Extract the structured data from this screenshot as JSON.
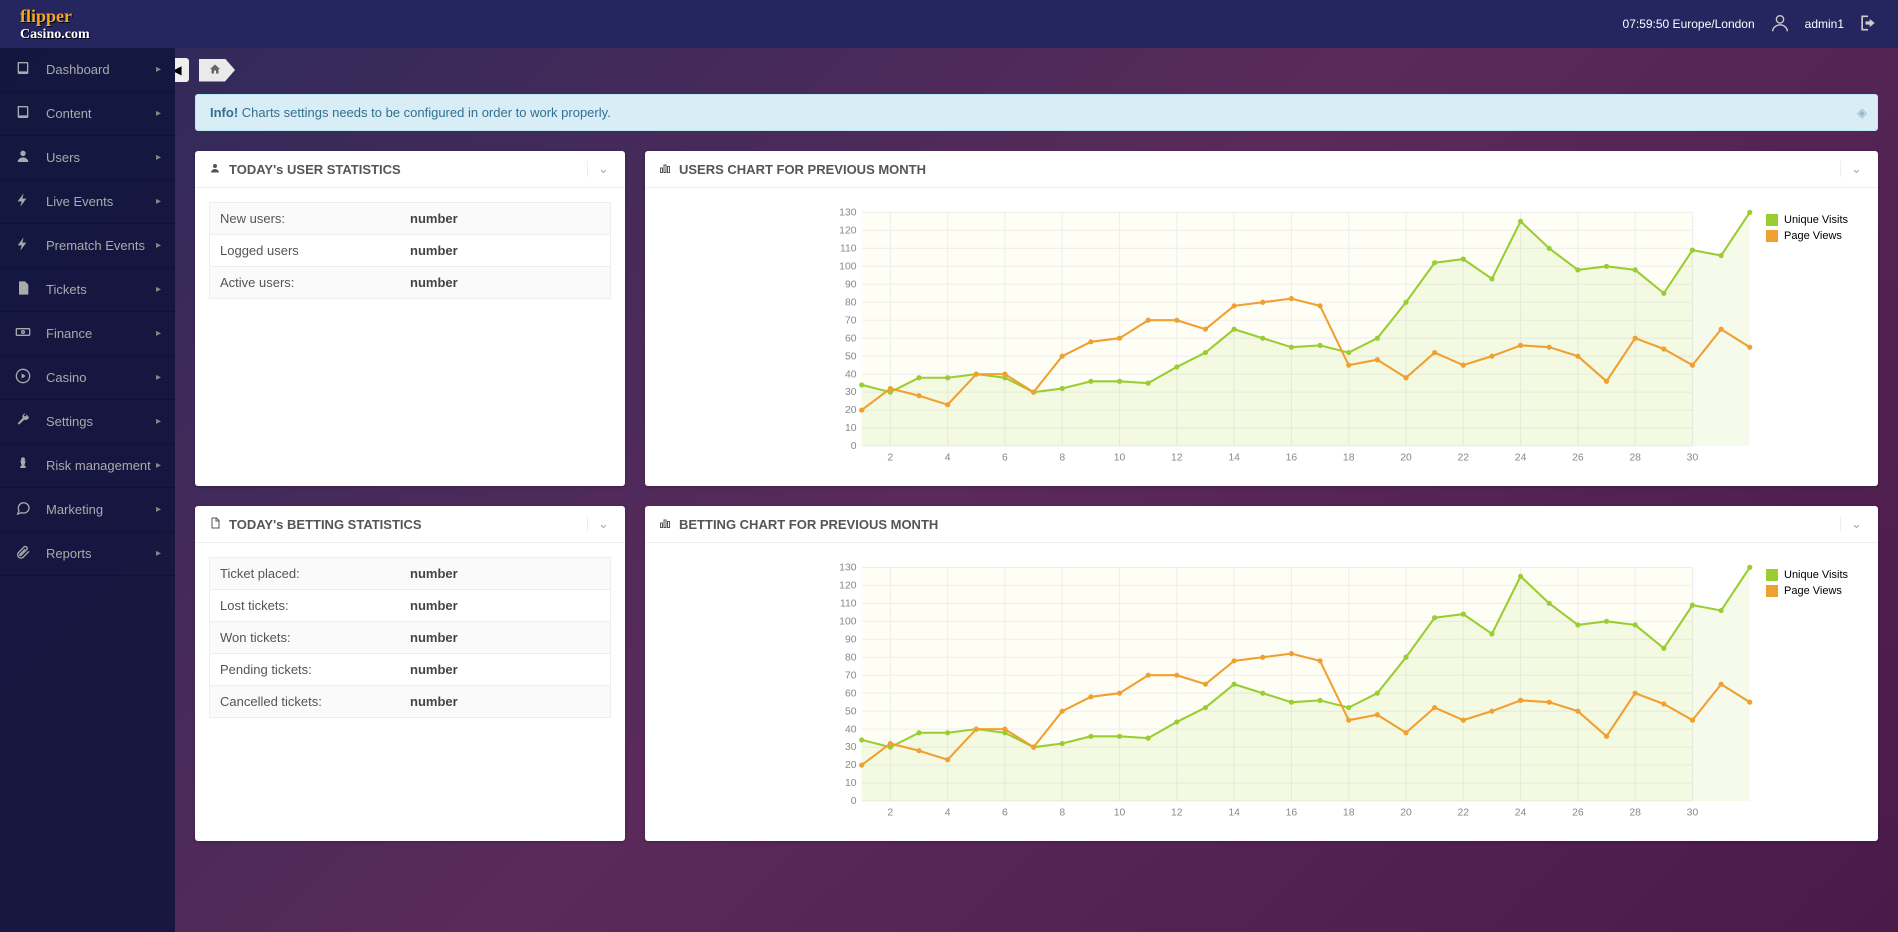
{
  "header": {
    "logo_top": "flipper",
    "logo_bottom": "Casino.com",
    "clock": "07:59:50 Europe/London",
    "username": "admin1"
  },
  "sidebar": {
    "items": [
      {
        "icon": "book",
        "label": "Dashboard"
      },
      {
        "icon": "book",
        "label": "Content"
      },
      {
        "icon": "user",
        "label": "Users"
      },
      {
        "icon": "bolt",
        "label": "Live Events"
      },
      {
        "icon": "bolt",
        "label": "Prematch Events"
      },
      {
        "icon": "file",
        "label": "Tickets"
      },
      {
        "icon": "money",
        "label": "Finance"
      },
      {
        "icon": "play",
        "label": "Casino"
      },
      {
        "icon": "wrench",
        "label": "Settings"
      },
      {
        "icon": "chess",
        "label": "Risk management"
      },
      {
        "icon": "chat",
        "label": "Marketing"
      },
      {
        "icon": "paperclip",
        "label": "Reports"
      }
    ]
  },
  "alert": {
    "prefix": "Info!",
    "text": " Charts settings needs to be configured in order to work properly."
  },
  "panels": {
    "user_stats": {
      "title": "TODAY's USER STATISTICS",
      "rows": [
        {
          "label": "New users:",
          "value": "number"
        },
        {
          "label": "Logged users",
          "value": "number"
        },
        {
          "label": "Active users:",
          "value": "number"
        }
      ]
    },
    "betting_stats": {
      "title": "TODAY's BETTING STATISTICS",
      "rows": [
        {
          "label": "Ticket placed:",
          "value": "number"
        },
        {
          "label": "Lost tickets:",
          "value": "number"
        },
        {
          "label": "Won tickets:",
          "value": "number"
        },
        {
          "label": "Pending tickets:",
          "value": "number"
        },
        {
          "label": "Cancelled tickets:",
          "value": "number"
        }
      ]
    },
    "users_chart": {
      "title": "USERS CHART FOR PREVIOUS MONTH"
    },
    "betting_chart": {
      "title": "BETTING CHART FOR PREVIOUS MONTH"
    }
  },
  "chart": {
    "legend": [
      {
        "label": "Unique Visits",
        "color": "#9acd32"
      },
      {
        "label": "Page Views",
        "color": "#f0a030"
      }
    ],
    "y_ticks": [
      0,
      10,
      20,
      30,
      40,
      50,
      60,
      70,
      80,
      90,
      100,
      110,
      120,
      130
    ],
    "x_ticks": [
      2,
      4,
      6,
      8,
      10,
      12,
      14,
      16,
      18,
      20,
      22,
      24,
      26,
      28,
      30
    ],
    "ylim": [
      0,
      130
    ],
    "xlim": [
      1,
      30
    ],
    "background": "#fefef5",
    "grid_color": "#eeeeee",
    "series": [
      {
        "name": "unique_visits",
        "color": "#9acd32",
        "fill": true,
        "data": [
          34,
          30,
          38,
          38,
          40,
          38,
          30,
          32,
          36,
          36,
          35,
          44,
          52,
          65,
          60,
          55,
          56,
          52,
          60,
          80,
          102,
          104,
          93,
          125,
          110,
          98,
          100,
          98,
          85,
          109,
          106,
          130
        ]
      },
      {
        "name": "page_views",
        "color": "#f0a030",
        "fill": false,
        "data": [
          20,
          32,
          28,
          23,
          40,
          40,
          30,
          50,
          58,
          60,
          70,
          70,
          65,
          78,
          80,
          82,
          78,
          45,
          48,
          38,
          52,
          45,
          50,
          56,
          55,
          50,
          36,
          60,
          54,
          45,
          65,
          55
        ]
      }
    ]
  },
  "colors": {
    "topbar": "#252560",
    "sidebar_bg": "rgba(15,20,60,0.85)",
    "alert_bg": "#d9edf7",
    "alert_text": "#31708f"
  }
}
